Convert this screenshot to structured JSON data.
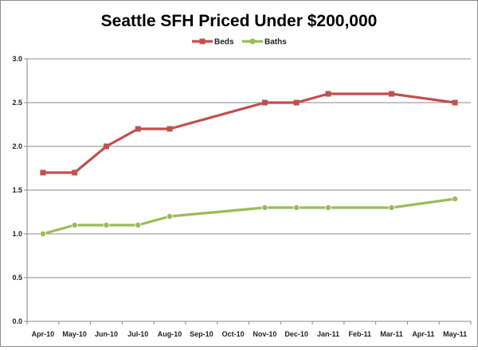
{
  "chart_data": {
    "type": "line",
    "title": "Seattle SFH Priced Under $200,000",
    "xlabel": "",
    "ylabel": "",
    "categories": [
      "Apr-10",
      "May-10",
      "Jun-10",
      "Jul-10",
      "Aug-10",
      "Sep-10",
      "Oct-10",
      "Nov-10",
      "Dec-10",
      "Jan-11",
      "Feb-11",
      "Mar-11",
      "Apr-11",
      "May-11"
    ],
    "y_ticks": [
      "0.0",
      "0.5",
      "1.0",
      "1.5",
      "2.0",
      "2.5",
      "3.0"
    ],
    "ylim": [
      0,
      3
    ],
    "grid": true,
    "legend_position": "top-center",
    "series": [
      {
        "name": "Beds",
        "color": "#c0504d",
        "values": [
          1.7,
          1.7,
          2.0,
          2.2,
          2.2,
          null,
          null,
          2.5,
          2.5,
          2.6,
          null,
          2.6,
          null,
          2.5
        ]
      },
      {
        "name": "Baths",
        "color": "#9bbb59",
        "values": [
          1.0,
          1.1,
          1.1,
          1.1,
          1.2,
          null,
          null,
          1.3,
          1.3,
          1.3,
          null,
          1.3,
          null,
          1.4
        ]
      }
    ]
  }
}
